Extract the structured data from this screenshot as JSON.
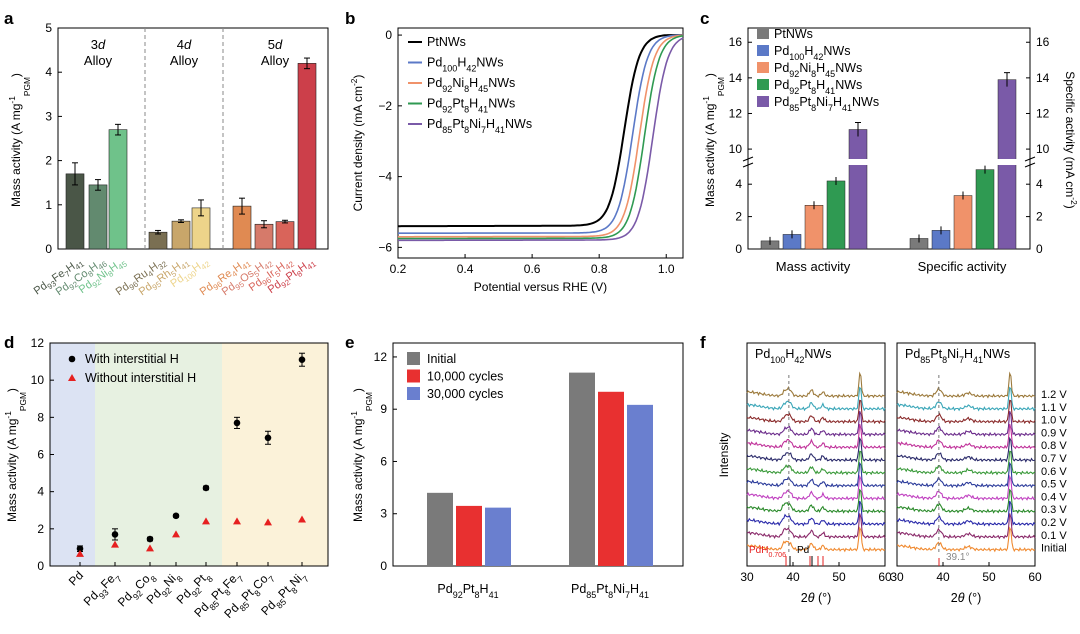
{
  "colors": {
    "black": "#000000",
    "gray": "#7a7a7a",
    "blue": "#5b79c7",
    "salmon": "#f0926a",
    "green": "#2f9a52",
    "purple": "#7a5aa8",
    "red_marker": "#e62020",
    "red_bar": "#e83030",
    "bluebar": "#6a7fcf"
  },
  "chart_data": [
    {
      "panel": "a",
      "type": "bar",
      "ylabel": "Mass activity (A mg",
      "ylabel_sub": "PGM",
      "ylabel_sup": "-1",
      "ylim": [
        0,
        5
      ],
      "yticks": [
        "0",
        "1",
        "2",
        "3",
        "4",
        "5"
      ],
      "groups": [
        {
          "label_line1": "3d",
          "label_line2": "Alloy"
        },
        {
          "label_line1": "4d",
          "label_line2": "Alloy"
        },
        {
          "label_line1": "5d",
          "label_line2": "Alloy"
        }
      ],
      "bars": [
        {
          "label": "Pd93Fe7H41",
          "value": 1.7,
          "err": 0.25,
          "color": "#4a5647"
        },
        {
          "label": "Pd92Co8H46",
          "value": 1.45,
          "err": 0.12,
          "color": "#628a6f"
        },
        {
          "label": "Pd92Ni8H45",
          "value": 2.7,
          "err": 0.12,
          "color": "#6fc28a"
        },
        {
          "label": "Pd96Ru4H32",
          "value": 0.38,
          "err": 0.04,
          "color": "#7a6f52"
        },
        {
          "label": "Pd95Rh5H41",
          "value": 0.63,
          "err": 0.03,
          "color": "#c8a66a"
        },
        {
          "label": "Pd100H42",
          "value": 0.93,
          "err": 0.18,
          "color": "#edd48a"
        },
        {
          "label": "Pd96Re4H41",
          "value": 0.97,
          "err": 0.18,
          "color": "#e08a52"
        },
        {
          "label": "Pd95Os5H42",
          "value": 0.56,
          "err": 0.08,
          "color": "#d67a6a"
        },
        {
          "label": "Pd96Ir5H42",
          "value": 0.62,
          "err": 0.03,
          "color": "#d9645a"
        },
        {
          "label": "Pd92Pt8H41",
          "value": 4.2,
          "err": 0.12,
          "color": "#cc3f4a"
        }
      ]
    },
    {
      "panel": "b",
      "type": "line",
      "xlabel": "Potential versus RHE (V)",
      "ylabel": "Current density (mA cm",
      "ylabel_sup": "-2",
      "xlim": [
        0.2,
        1.05
      ],
      "ylim": [
        -6.3,
        0.2
      ],
      "xticks": [
        "0.2",
        "0.4",
        "0.6",
        "0.8",
        "1.0"
      ],
      "yticks": [
        "-6",
        "-4",
        "-2",
        "0"
      ],
      "series": [
        {
          "name": "Pt NWs",
          "plateau": -5.4,
          "e_half": 0.875,
          "color": "#000000"
        },
        {
          "name": "Pd100H42 NWs",
          "plateau": -5.6,
          "e_half": 0.9,
          "color": "#5b79c7"
        },
        {
          "name": "Pd92Ni8H45 NWs",
          "plateau": -5.7,
          "e_half": 0.92,
          "color": "#f0926a"
        },
        {
          "name": "Pd92Pt8H41 NWs",
          "plateau": -5.75,
          "e_half": 0.935,
          "color": "#2f9a52"
        },
        {
          "name": "Pd85Pt8Ni7H41 NWs",
          "plateau": -5.8,
          "e_half": 0.96,
          "color": "#7a5aa8"
        }
      ]
    },
    {
      "panel": "c",
      "type": "bar",
      "ylabel_left": "Mass activity (A mg",
      "ylabel_right": "Specific activity (mA cm",
      "yticks_lower": [
        "0",
        "2",
        "4"
      ],
      "yticks_upper": [
        "10",
        "12",
        "14",
        "16"
      ],
      "categories": [
        "Mass activity",
        "Specific activity"
      ],
      "series": [
        {
          "name": "Pt NWs",
          "values": [
            0.5,
            0.65
          ],
          "color": "#7a7a7a"
        },
        {
          "name": "Pd100H42 NWs",
          "values": [
            0.9,
            1.15
          ],
          "color": "#5b79c7"
        },
        {
          "name": "Pd92Ni8H45 NWs",
          "values": [
            2.7,
            3.3
          ],
          "color": "#f0926a"
        },
        {
          "name": "Pd92Pt8H41 NWs",
          "values": [
            4.2,
            4.9
          ],
          "color": "#2f9a52"
        },
        {
          "name": "Pd85Pt8Ni7H41 NWs",
          "values": [
            11.1,
            13.9
          ],
          "color": "#7a5aa8"
        }
      ]
    },
    {
      "panel": "d",
      "type": "scatter",
      "ylabel": "Mass activity (A mg",
      "ylim": [
        0,
        12
      ],
      "yticks": [
        "0",
        "2",
        "4",
        "6",
        "8",
        "10",
        "12"
      ],
      "categories": [
        "Pd",
        "Pd93Fe7",
        "Pd92Co8",
        "Pd92Ni8",
        "Pd92Pt8",
        "Pd85Pt8Fe7",
        "Pd85Pt8Co7",
        "Pd85Pt8Ni7"
      ],
      "series": [
        {
          "name": "With interstitial H",
          "values": [
            0.93,
            1.7,
            1.45,
            2.7,
            4.2,
            7.7,
            6.9,
            11.1
          ],
          "errs": [
            0.15,
            0.3,
            0.1,
            0.08,
            0.1,
            0.3,
            0.35,
            0.35
          ],
          "color": "#000000",
          "marker": "circle"
        },
        {
          "name": "Without interstitial H",
          "values": [
            0.65,
            1.15,
            0.95,
            1.7,
            2.4,
            2.4,
            2.35,
            2.5
          ],
          "color": "#e62020",
          "marker": "triangle"
        }
      ],
      "regions": [
        "#dce3f3",
        "#e7f1e1",
        "#fbf2d9"
      ]
    },
    {
      "panel": "e",
      "type": "bar",
      "ylabel": "Mass activity (A mg",
      "ylim": [
        0,
        12.8
      ],
      "yticks": [
        "0",
        "3",
        "6",
        "9",
        "12"
      ],
      "categories": [
        "Pd92Pt8H41",
        "Pd85Pt8Ni7H41"
      ],
      "series": [
        {
          "name": "Initial",
          "values": [
            4.2,
            11.1
          ],
          "color": "#7a7a7a"
        },
        {
          "name": "10,000 cycles",
          "values": [
            3.45,
            10.0
          ],
          "color": "#e83030"
        },
        {
          "name": "30,000 cycles",
          "values": [
            3.35,
            9.25
          ],
          "color": "#6a7fcf"
        }
      ]
    },
    {
      "panel": "f",
      "type": "line",
      "xlabel": "2θ (°)",
      "ylabel": "Intensity",
      "xlim": [
        30,
        60
      ],
      "xticks": [
        "30",
        "40",
        "50",
        "60"
      ],
      "titles": [
        "Pd100H42 NWs",
        "Pd85Pt8Ni7H41 NWs"
      ],
      "potentials": [
        "1.2 V",
        "1.1 V",
        "1.0 V",
        "0.9 V",
        "0.8 V",
        "0.7 V",
        "0.6 V",
        "0.5 V",
        "0.4 V",
        "0.3 V",
        "0.2 V",
        "0.1 V",
        "Initial"
      ],
      "trace_colors": [
        "#9c7a3c",
        "#3aa6b8",
        "#8a2a2a",
        "#6a2a8a",
        "#c0329a",
        "#2a2a6a",
        "#3a9a3a",
        "#2a3a9a",
        "#c040c0",
        "#2a8a2a",
        "#2a2aaa",
        "#8a2a6a",
        "#f08a30"
      ],
      "annotations": {
        "ref_left": "PdH",
        "ref_left_sub": "0.706",
        "ref_pd": "Pd",
        "angle": "39.1°"
      }
    }
  ],
  "panel_letters": [
    "a",
    "b",
    "c",
    "d",
    "e",
    "f"
  ]
}
